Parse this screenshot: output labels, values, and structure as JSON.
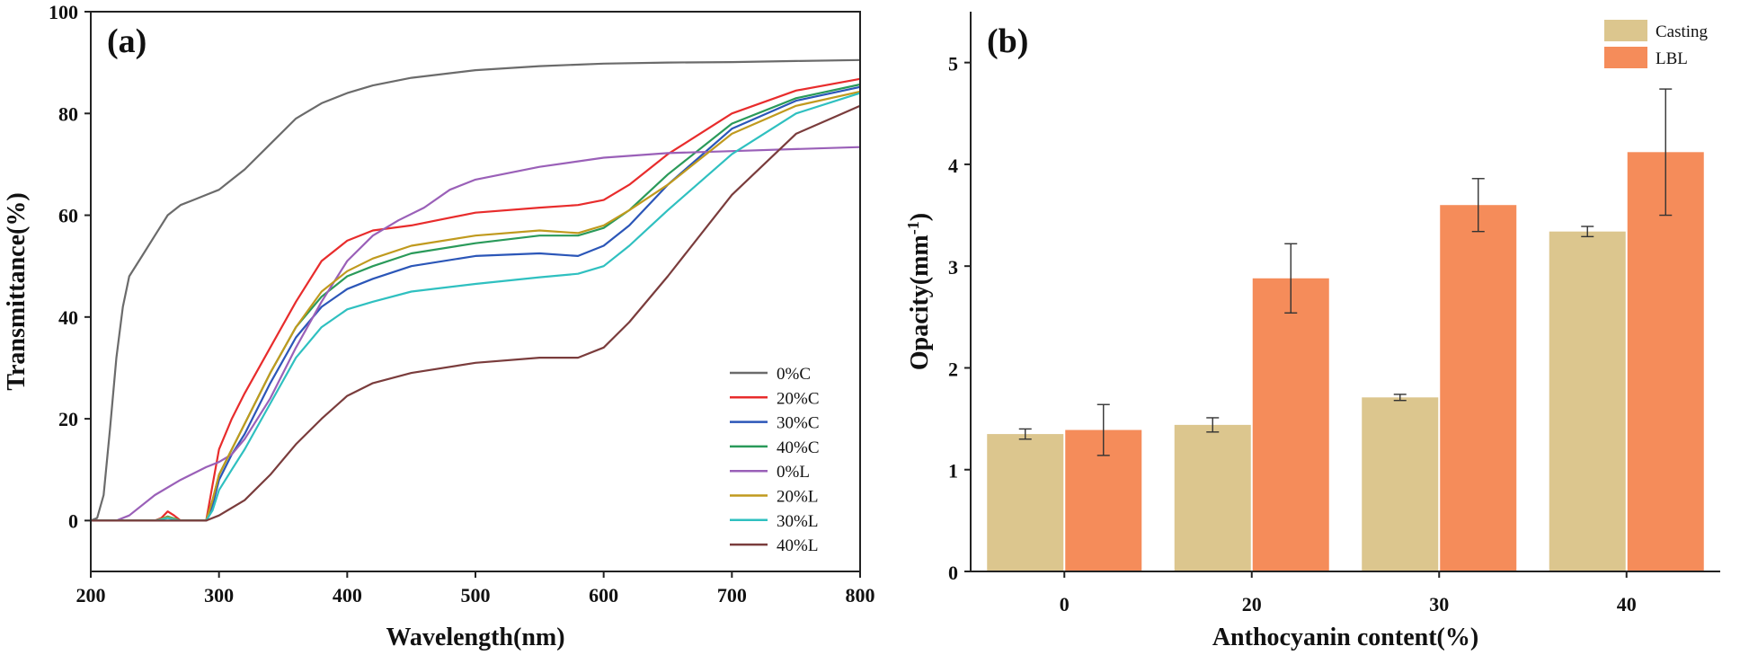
{
  "chart_data": [
    {
      "type": "line",
      "panel_label": "(a)",
      "xlabel": "Wavelength(nm)",
      "ylabel": "Transmittance(%)",
      "xlim": [
        200,
        800
      ],
      "ylim": [
        -10,
        100
      ],
      "xticks": [
        200,
        300,
        400,
        500,
        600,
        700,
        800
      ],
      "yticks": [
        0,
        20,
        40,
        60,
        80,
        100
      ],
      "legend_position": "bottom-right",
      "series": [
        {
          "name": "0%C",
          "color": "#6b6b6b",
          "x": [
            200,
            205,
            210,
            215,
            220,
            225,
            230,
            240,
            250,
            260,
            270,
            280,
            290,
            300,
            310,
            320,
            340,
            360,
            380,
            400,
            420,
            450,
            500,
            550,
            600,
            650,
            700,
            750,
            800
          ],
          "y": [
            0,
            0.5,
            5,
            18,
            32,
            42,
            48,
            52,
            56,
            60,
            62,
            63,
            64,
            65,
            67,
            69,
            74,
            79,
            82,
            84,
            85.5,
            87,
            88.5,
            89.3,
            89.8,
            90,
            90.1,
            90.3,
            90.5
          ]
        },
        {
          "name": "20%C",
          "color": "#e82c2c",
          "x": [
            200,
            250,
            255,
            260,
            265,
            270,
            290,
            295,
            300,
            310,
            320,
            340,
            360,
            380,
            400,
            420,
            450,
            500,
            550,
            580,
            600,
            620,
            650,
            700,
            750,
            800
          ],
          "y": [
            0,
            0,
            0.5,
            1.8,
            1,
            0,
            0,
            7,
            14,
            20,
            25,
            34,
            43,
            51,
            55,
            57,
            58,
            60.5,
            61.5,
            62,
            63,
            66,
            72,
            80,
            84.5,
            86.8
          ]
        },
        {
          "name": "30%C",
          "color": "#2b56b8",
          "x": [
            200,
            250,
            255,
            260,
            265,
            270,
            290,
            295,
            300,
            310,
            320,
            340,
            360,
            380,
            400,
            420,
            450,
            500,
            550,
            580,
            600,
            620,
            650,
            700,
            750,
            800
          ],
          "y": [
            0,
            0,
            0.3,
            0.6,
            0.3,
            0,
            0,
            3,
            8,
            13,
            17,
            27,
            36,
            42,
            45.5,
            47.5,
            50,
            52,
            52.5,
            52,
            54,
            58,
            66,
            77,
            82.5,
            85.2
          ]
        },
        {
          "name": "40%C",
          "color": "#2a9a5a",
          "x": [
            200,
            250,
            255,
            260,
            265,
            270,
            290,
            295,
            300,
            310,
            320,
            340,
            360,
            380,
            400,
            420,
            450,
            500,
            550,
            580,
            600,
            620,
            650,
            700,
            750,
            800
          ],
          "y": [
            0,
            0,
            0.3,
            0.8,
            0.4,
            0,
            0,
            4,
            9,
            14,
            19,
            29,
            38,
            44,
            48,
            50,
            52.5,
            54.5,
            56,
            56,
            57.5,
            61,
            68,
            78,
            83,
            85.7
          ]
        },
        {
          "name": "0%L",
          "color": "#9a60b8",
          "x": [
            200,
            220,
            230,
            250,
            270,
            290,
            300,
            310,
            320,
            340,
            360,
            380,
            400,
            420,
            440,
            460,
            480,
            500,
            550,
            600,
            650,
            700,
            750,
            800
          ],
          "y": [
            0,
            0,
            1,
            5,
            8,
            10.5,
            11.5,
            13,
            16,
            24,
            34,
            43,
            51,
            56,
            59,
            61.5,
            65,
            67,
            69.5,
            71.3,
            72.2,
            72.6,
            73,
            73.4
          ]
        },
        {
          "name": "20%L",
          "color": "#c09a1e",
          "x": [
            200,
            250,
            255,
            260,
            265,
            270,
            290,
            295,
            300,
            310,
            320,
            340,
            360,
            380,
            400,
            420,
            450,
            500,
            550,
            580,
            600,
            620,
            650,
            700,
            750,
            800
          ],
          "y": [
            0,
            0,
            0.3,
            0.7,
            0.3,
            0,
            0,
            4,
            9,
            14,
            19,
            29,
            38,
            45,
            49,
            51.5,
            54,
            56,
            57,
            56.5,
            58,
            61,
            66,
            76,
            81.5,
            84.3
          ]
        },
        {
          "name": "30%L",
          "color": "#2fc0c0",
          "x": [
            200,
            250,
            255,
            260,
            265,
            270,
            290,
            295,
            300,
            310,
            320,
            340,
            360,
            380,
            400,
            420,
            450,
            500,
            550,
            580,
            600,
            620,
            650,
            700,
            750,
            800
          ],
          "y": [
            0,
            0,
            0.2,
            0.5,
            0.2,
            0,
            0,
            2,
            6,
            10,
            14,
            23,
            32,
            38,
            41.5,
            43,
            45,
            46.5,
            47.8,
            48.5,
            50,
            54,
            61,
            72,
            80,
            84
          ]
        },
        {
          "name": "40%L",
          "color": "#7a3c3c",
          "x": [
            200,
            250,
            280,
            290,
            300,
            320,
            340,
            360,
            380,
            400,
            420,
            450,
            500,
            550,
            580,
            600,
            620,
            650,
            700,
            750,
            800
          ],
          "y": [
            0,
            0,
            0,
            0,
            1,
            4,
            9,
            15,
            20,
            24.5,
            27,
            29,
            31,
            32,
            32,
            34,
            39,
            48,
            64,
            76,
            81.5
          ]
        }
      ]
    },
    {
      "type": "bar",
      "panel_label": "(b)",
      "xlabel": "Anthocyanin content(%)",
      "ylabel": "Opacity(mm",
      "ylabel_sup": "-1",
      "ylabel_close": ")",
      "ylim": [
        0,
        5.5
      ],
      "yticks": [
        0,
        1,
        2,
        3,
        4,
        5
      ],
      "categories": [
        "0",
        "20",
        "30",
        "40"
      ],
      "legend_position": "top-right",
      "series": [
        {
          "name": "Casting",
          "color": "#dcc68e",
          "values": [
            1.35,
            1.44,
            1.71,
            3.34
          ],
          "errors": [
            0.05,
            0.07,
            0.03,
            0.05
          ]
        },
        {
          "name": "LBL",
          "color": "#f58c5a",
          "values": [
            1.39,
            2.88,
            3.6,
            4.12
          ],
          "errors": [
            0.25,
            0.34,
            0.26,
            0.62
          ]
        }
      ]
    }
  ]
}
